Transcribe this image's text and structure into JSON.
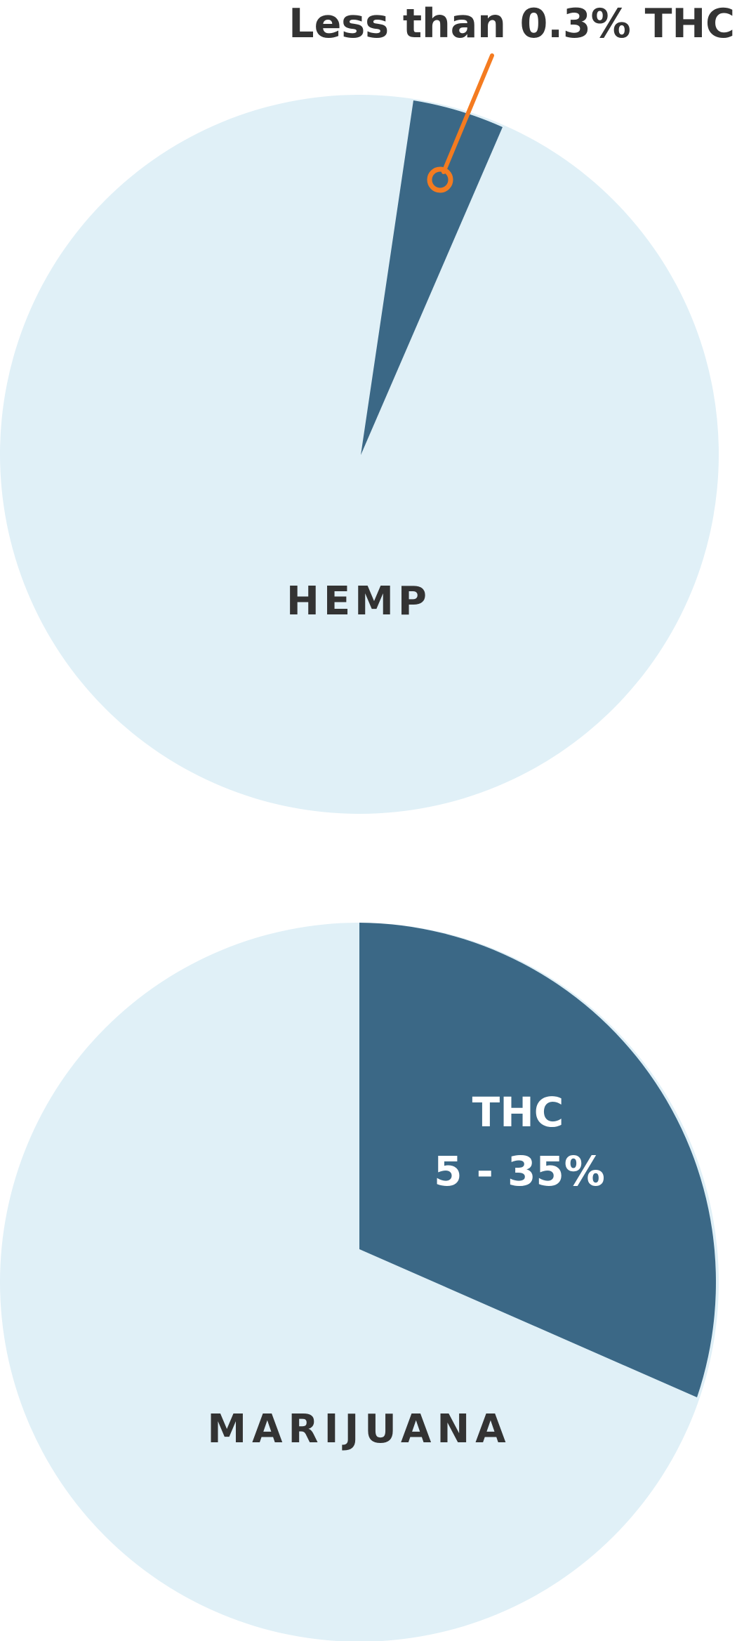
{
  "colors": {
    "background": "#ffffff",
    "pie_base": "#e0f0f7",
    "pie_slice": "#3b6886",
    "callout": "#f47b20",
    "dark_text": "#333333",
    "light_text": "#ffffff"
  },
  "chart_data": [
    {
      "type": "pie",
      "label": "HEMP",
      "slices": [
        {
          "name": "THC",
          "value": 0.3,
          "color": "#3b6886",
          "callout": "Less than 0.3% THC"
        },
        {
          "name": "",
          "value": 99.7,
          "color": "#e0f0f7"
        }
      ],
      "legend": "none"
    },
    {
      "type": "pie",
      "label": "MARIJUANA",
      "slices": [
        {
          "name": "THC",
          "value_range": [
            5,
            35
          ],
          "label_lines": [
            "THC",
            "5 - 35%"
          ],
          "color": "#3b6886"
        },
        {
          "name": "",
          "color": "#e0f0f7"
        }
      ],
      "legend": "none"
    }
  ]
}
